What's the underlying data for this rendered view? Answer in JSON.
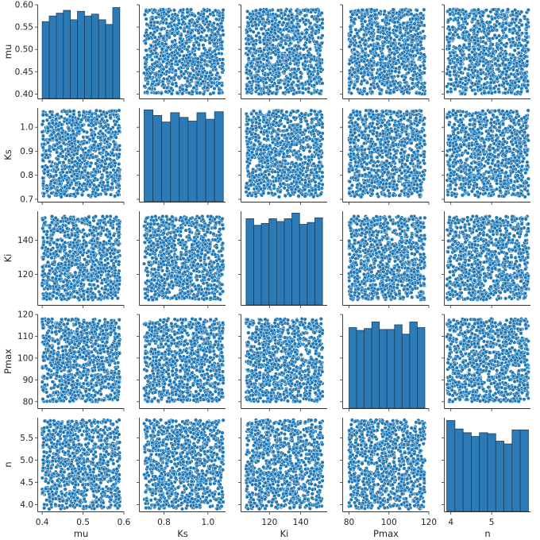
{
  "chart_data": {
    "type": "scatter",
    "kind": "pairplot",
    "variables": [
      "mu",
      "Ks",
      "Ki",
      "Pmax",
      "n"
    ],
    "ranges": {
      "mu": [
        0.4,
        0.59
      ],
      "Ks": [
        0.71,
        1.07
      ],
      "Ki": [
        105,
        154
      ],
      "Pmax": [
        80,
        118
      ],
      "n": [
        3.9,
        5.9
      ]
    },
    "axis_limits": {
      "mu": [
        0.39,
        0.6
      ],
      "Ks": [
        0.69,
        1.08
      ],
      "Ki": [
        102,
        157
      ],
      "Pmax": [
        77,
        120
      ],
      "n": [
        3.85,
        5.95
      ]
    },
    "x_ticks": {
      "mu": [
        "0.4",
        "0.5",
        "0.6"
      ],
      "Ks": [
        "0.8",
        "1.0"
      ],
      "Ki": [
        "120",
        "140"
      ],
      "Pmax": [
        "80",
        "100",
        "120"
      ],
      "n": [
        "4",
        "5"
      ]
    },
    "y_ticks": {
      "mu": [
        "0.40",
        "0.45",
        "0.50",
        "0.55",
        "0.60"
      ],
      "Ks": [
        "0.7",
        "0.8",
        "0.9",
        "1.0"
      ],
      "Ki": [
        "120",
        "140"
      ],
      "Pmax": [
        "80",
        "90",
        "100",
        "110",
        "120"
      ],
      "n": [
        "4.0",
        "4.5",
        "5.0",
        "5.5"
      ]
    },
    "histograms": {
      "mu": [
        0.82,
        0.88,
        0.91,
        0.94,
        0.84,
        0.93,
        0.88,
        0.9,
        0.84,
        0.79,
        0.97
      ],
      "Ks": [
        0.98,
        0.92,
        0.85,
        0.95,
        0.9,
        0.86,
        0.95,
        0.88,
        0.96
      ],
      "Ki": [
        0.92,
        0.85,
        0.87,
        0.92,
        0.89,
        0.92,
        0.98,
        0.86,
        0.88,
        0.93
      ],
      "Pmax": [
        0.86,
        0.83,
        0.85,
        0.92,
        0.84,
        0.84,
        0.89,
        0.79,
        0.92,
        0.86
      ],
      "n": [
        0.97,
        0.88,
        0.84,
        0.8,
        0.84,
        0.83,
        0.75,
        0.72,
        0.87,
        0.87
      ]
    },
    "n_points": 1000,
    "marker_color": "#1f77b4",
    "bar_color": "#2c7bb6",
    "edge_color": "#ffffff",
    "grid": false
  }
}
